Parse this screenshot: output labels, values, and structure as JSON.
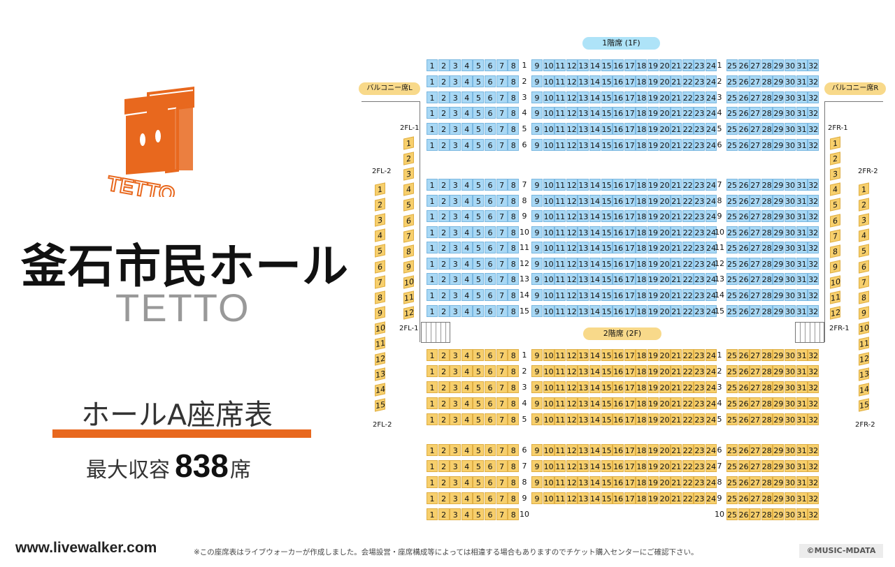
{
  "venue": {
    "name_jp": "釜石市民ホール",
    "name_en": "TETTO",
    "logo_text": "TETTO"
  },
  "chart": {
    "title": "ホールA座席表",
    "capacity_label": "最大収容",
    "capacity_value": "838",
    "capacity_unit": "席"
  },
  "floor1": {
    "label": "1階席 (1F)",
    "rows": [
      "1",
      "2",
      "3",
      "4",
      "5",
      "6",
      "7",
      "8",
      "9",
      "10",
      "11",
      "12",
      "13",
      "14",
      "15"
    ]
  },
  "floor2": {
    "label": "2階席 (2F)",
    "rows": [
      "1",
      "2",
      "3",
      "4",
      "5",
      "6",
      "7",
      "8",
      "9",
      "10"
    ]
  },
  "balcony": {
    "left_label": "バルコニー席L",
    "right_label": "バルコニー席R",
    "left_inner_label": "2FL-1",
    "left_outer_label": "2FL-2",
    "right_inner_label": "2FR-1",
    "right_outer_label": "2FR-2",
    "inner_seats": [
      "1",
      "2",
      "3",
      "4",
      "5",
      "6",
      "7",
      "8",
      "9",
      "10",
      "11",
      "12"
    ],
    "outer_seats": [
      "1",
      "2",
      "3",
      "4",
      "5",
      "6",
      "7",
      "8",
      "9",
      "10",
      "11",
      "12",
      "13",
      "14",
      "15"
    ]
  },
  "footer": {
    "site_url": "www.livewalker.com",
    "disclaimer": "※この座席表はライブウォーカーが作成しました。会場設営・座席構成等によっては相違する場合もありますのでチケット購入センターにご確認下さい。",
    "copyright": "©MUSIC-MDATA"
  },
  "colors": {
    "floor1_seat": "#a8d8f5",
    "floor2_seat": "#f7cf6c",
    "accent": "#e8681e"
  }
}
